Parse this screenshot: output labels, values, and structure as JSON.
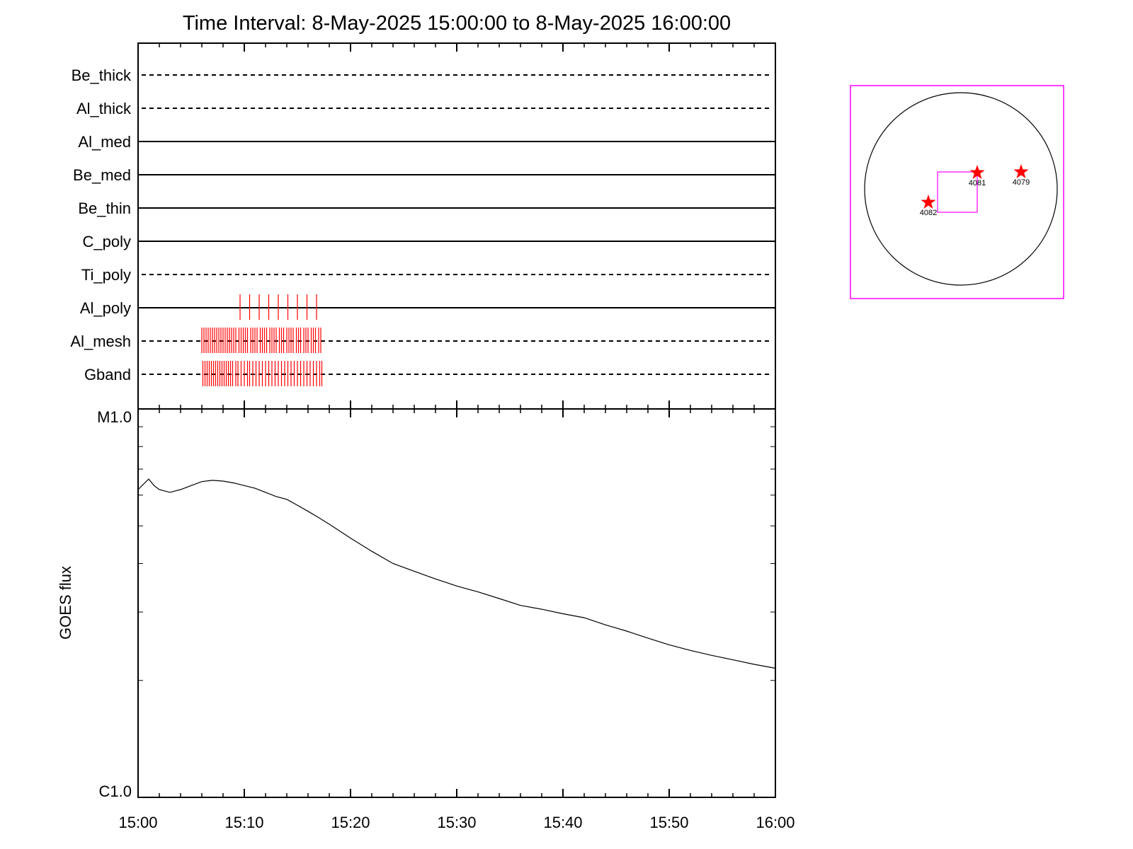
{
  "title": "Time Interval:  8-May-2025 15:00:00 to  8-May-2025 16:00:00",
  "colors": {
    "axis": "#000000",
    "event_ticks": "#ff0000",
    "sun_box": "#ff00ff",
    "stars": "#ff0000"
  },
  "chart_data": [
    {
      "type": "scatter",
      "name": "filter-timeline",
      "xlim_minutes": [
        0,
        60
      ],
      "rows": [
        {
          "label": "Be_thick",
          "style": "dashed",
          "events": []
        },
        {
          "label": "Al_thick",
          "style": "dashed",
          "events": []
        },
        {
          "label": "Al_med",
          "style": "solid",
          "events": []
        },
        {
          "label": "Be_med",
          "style": "solid",
          "events": []
        },
        {
          "label": "Be_thin",
          "style": "solid",
          "events": []
        },
        {
          "label": "C_poly",
          "style": "solid",
          "events": []
        },
        {
          "label": "Ti_poly",
          "style": "dashed",
          "events": []
        },
        {
          "label": "Al_poly",
          "style": "solid",
          "events": [
            9.6,
            10.5,
            11.4,
            12.3,
            13.2,
            14.1,
            15.0,
            15.9,
            16.8
          ]
        },
        {
          "label": "Al_mesh",
          "style": "dashed",
          "events": [
            6.0,
            6.2,
            6.4,
            6.6,
            6.8,
            7.0,
            7.2,
            7.4,
            7.6,
            7.8,
            8.0,
            8.2,
            8.4,
            8.6,
            8.8,
            9.0,
            9.2,
            9.5,
            9.7,
            9.9,
            10.1,
            10.3,
            10.6,
            10.8,
            11.0,
            11.2,
            11.5,
            11.7,
            11.9,
            12.1,
            12.4,
            12.6,
            12.8,
            13.0,
            13.3,
            13.5,
            13.7,
            14.0,
            14.2,
            14.4,
            14.6,
            14.9,
            15.1,
            15.3,
            15.6,
            15.8,
            16.0,
            16.3,
            16.5,
            16.7,
            17.0,
            17.2
          ]
        },
        {
          "label": "Gband",
          "style": "dashed",
          "events": [
            6.1,
            6.3,
            6.5,
            6.7,
            6.9,
            7.1,
            7.3,
            7.5,
            7.7,
            7.9,
            8.1,
            8.3,
            8.5,
            8.7,
            8.9,
            9.2,
            9.4,
            9.7,
            10.0,
            10.3,
            10.5,
            10.8,
            11.1,
            11.4,
            11.7,
            12.0,
            12.3,
            12.6,
            12.9,
            13.2,
            13.5,
            13.8,
            14.1,
            14.4,
            14.7,
            15.0,
            15.3,
            15.6,
            15.9,
            16.2,
            16.5,
            16.8,
            17.1,
            17.3
          ]
        }
      ]
    },
    {
      "type": "line",
      "name": "goes-flux",
      "ylabel": "GOES flux",
      "ylim_labels": [
        "C1.0",
        "M1.0"
      ],
      "y_scale": "log",
      "ylim": [
        1e-06,
        1e-05
      ],
      "x_ticks": [
        "15:00",
        "15:10",
        "15:20",
        "15:30",
        "15:40",
        "15:50",
        "16:00"
      ],
      "xlim_minutes": [
        0,
        60
      ],
      "series": [
        {
          "x": [
            0,
            0.5,
            1.0,
            1.5,
            2.0,
            3.0,
            4.0,
            5.0,
            6.0,
            7.0,
            8.0,
            9.0,
            10.0,
            11.0,
            12.0,
            13.0,
            14.0,
            15.0,
            16.0,
            17.0,
            18.0,
            20.0,
            22.0,
            24.0,
            26.0,
            28.0,
            30.0,
            32.0,
            34.0,
            36.0,
            38.0,
            40.0,
            42.0,
            44.0,
            46.0,
            48.0,
            50.0,
            52.0,
            54.0,
            56.0,
            58.0,
            60.0
          ],
          "y": [
            6.2e-06,
            6.4e-06,
            6.6e-06,
            6.35e-06,
            6.2e-06,
            6.1e-06,
            6.2e-06,
            6.35e-06,
            6.5e-06,
            6.55e-06,
            6.52e-06,
            6.45e-06,
            6.35e-06,
            6.25e-06,
            6.1e-06,
            5.95e-06,
            5.85e-06,
            5.65e-06,
            5.45e-06,
            5.25e-06,
            5.05e-06,
            4.65e-06,
            4.3e-06,
            4e-06,
            3.82e-06,
            3.65e-06,
            3.5e-06,
            3.38e-06,
            3.25e-06,
            3.12e-06,
            3.05e-06,
            2.97e-06,
            2.9e-06,
            2.78e-06,
            2.68e-06,
            2.57e-06,
            2.47e-06,
            2.39e-06,
            2.32e-06,
            2.26e-06,
            2.2e-06,
            2.15e-06
          ]
        }
      ]
    }
  ],
  "sun_map": {
    "regions": [
      {
        "label": "4081"
      },
      {
        "label": "4079"
      },
      {
        "label": "4082"
      }
    ]
  }
}
